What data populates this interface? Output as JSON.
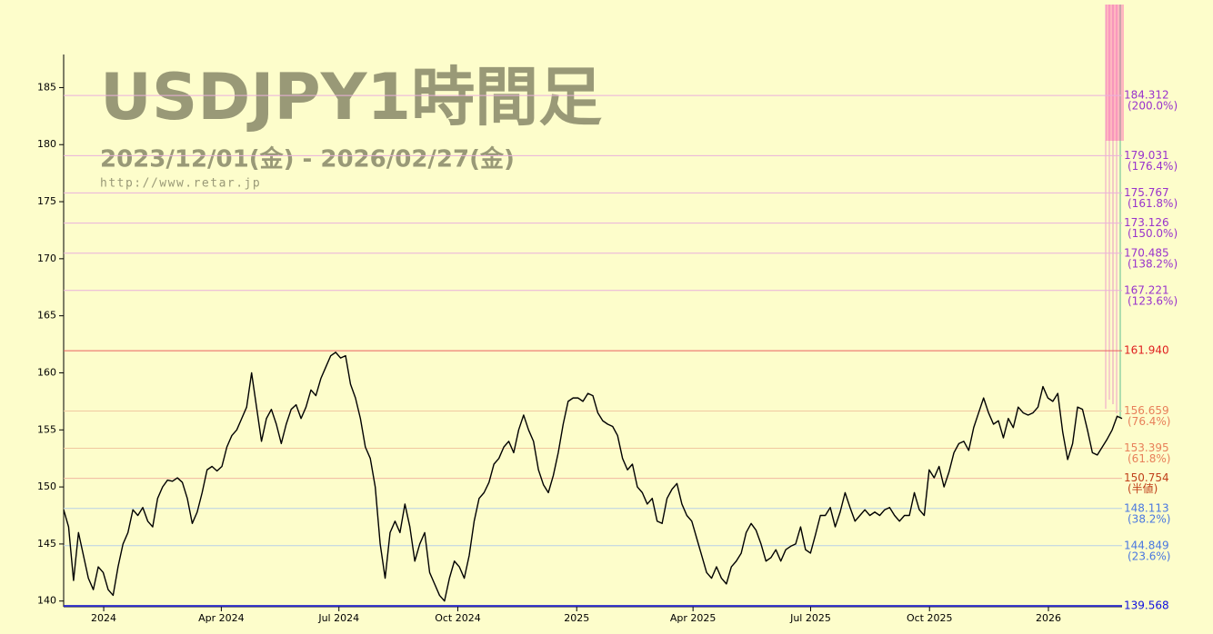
{
  "chart_data": {
    "type": "line",
    "title": "USDJPY1時間足",
    "subtitle": "2023/12/01(金) - 2026/02/27(金)",
    "source": "http://www.retar.jp",
    "color": "#000000",
    "xlim": [
      "2023-12-01",
      "2026-02-27"
    ],
    "xticks": [
      {
        "value": "2024-01-01",
        "label": "2024"
      },
      {
        "value": "2024-04-01",
        "label": "Apr 2024"
      },
      {
        "value": "2024-07-01",
        "label": "Jul 2024"
      },
      {
        "value": "2024-10-01",
        "label": "Oct 2024"
      },
      {
        "value": "2025-01-01",
        "label": "2025"
      },
      {
        "value": "2025-04-01",
        "label": "Apr 2025"
      },
      {
        "value": "2025-07-01",
        "label": "Jul 2025"
      },
      {
        "value": "2025-10-01",
        "label": "Oct 2025"
      },
      {
        "value": "2026-01-01",
        "label": "2026"
      }
    ],
    "ylim": [
      139.5,
      187.9
    ],
    "yticks": [
      140,
      145,
      150,
      155,
      160,
      165,
      170,
      175,
      180,
      185
    ],
    "values": [
      148.0,
      146.5,
      141.8,
      146,
      144,
      142,
      141,
      143,
      142.5,
      141,
      140.5,
      143,
      145,
      146,
      148,
      147.5,
      148.2,
      147,
      146.5,
      149,
      150,
      150.6,
      150.5,
      150.8,
      150.4,
      149,
      146.8,
      147.8,
      149.5,
      151.5,
      151.8,
      151.4,
      151.8,
      153.5,
      154.5,
      155,
      156,
      157,
      160,
      157,
      154,
      156,
      156.8,
      155.5,
      153.8,
      155.5,
      156.8,
      157.2,
      156,
      157,
      158.5,
      158,
      159.5,
      160.5,
      161.5,
      161.8,
      161.3,
      161.5,
      159,
      157.8,
      156,
      153.5,
      152.5,
      150,
      145,
      142,
      146,
      147,
      146,
      148.5,
      146.5,
      143.5,
      145,
      146,
      142.5,
      141.5,
      140.5,
      140,
      142,
      143.5,
      143,
      142,
      144,
      147,
      149,
      149.5,
      150.4,
      152,
      152.5,
      153.5,
      154,
      153,
      155,
      156.3,
      155,
      154,
      151.5,
      150.2,
      149.5,
      151,
      153,
      155.5,
      157.5,
      157.8,
      157.8,
      157.5,
      158.2,
      158,
      156.5,
      155.8,
      155.5,
      155.3,
      154.5,
      152.5,
      151.5,
      152,
      150,
      149.5,
      148.5,
      149,
      147,
      146.8,
      149,
      149.8,
      150.3,
      148.5,
      147.5,
      147,
      145.5,
      144,
      142.5,
      142,
      143,
      142,
      141.5,
      143,
      143.5,
      144.2,
      146,
      146.8,
      146.2,
      145,
      143.5,
      143.8,
      144.5,
      143.5,
      144.5,
      144.8,
      145,
      146.5,
      144.5,
      144.2,
      145.8,
      147.5,
      147.5,
      148.2,
      146.5,
      147.8,
      149.5,
      148.2,
      147,
      147.5,
      148,
      147.5,
      147.8,
      147.5,
      148,
      148.2,
      147.5,
      147,
      147.5,
      147.5,
      149.5,
      148,
      147.5,
      151.5,
      150.8,
      151.8,
      150,
      151.3,
      153,
      153.8,
      154,
      153.2,
      155.2,
      156.5,
      157.8,
      156.5,
      155.5,
      155.8,
      154.3,
      156,
      155.2,
      157,
      156.5,
      156.3,
      156.5,
      157,
      158.8,
      157.8,
      157.5,
      158.2,
      154.8,
      152.4,
      153.8,
      157,
      156.8,
      155,
      153,
      152.8,
      153.5,
      154.2,
      155,
      156.2,
      156
    ],
    "levels": [
      {
        "value": 184.312,
        "label": "184.312",
        "note": "(200.0%)",
        "color": "#9933cc",
        "line_color": "#eab0dc"
      },
      {
        "value": 179.031,
        "label": "179.031",
        "note": "(176.4%)",
        "color": "#9933cc",
        "line_color": "#eab0dc"
      },
      {
        "value": 175.767,
        "label": "175.767",
        "note": "(161.8%)",
        "color": "#9933cc",
        "line_color": "#eab0dc"
      },
      {
        "value": 173.126,
        "label": "173.126",
        "note": "(150.0%)",
        "color": "#9933cc",
        "line_color": "#eab0dc"
      },
      {
        "value": 170.485,
        "label": "170.485",
        "note": "(138.2%)",
        "color": "#9933cc",
        "line_color": "#eab0dc"
      },
      {
        "value": 167.221,
        "label": "167.221",
        "note": "(123.6%)",
        "color": "#9933cc",
        "line_color": "#eab0dc"
      },
      {
        "value": 161.94,
        "label": "161.940",
        "color": "#e02020",
        "line_color": "#e86060"
      },
      {
        "value": 156.659,
        "label": "156.659",
        "note": "(76.4%)",
        "color": "#e8805a",
        "line_color": "#f0c8a0"
      },
      {
        "value": 153.395,
        "label": "153.395",
        "note": "(61.8%)",
        "color": "#e8805a",
        "line_color": "#f0c8a0"
      },
      {
        "value": 150.754,
        "label": "150.754",
        "note": "(半値)",
        "color": "#c0401a",
        "line_color": "#f0b8a0"
      },
      {
        "value": 148.113,
        "label": "148.113",
        "note": "(38.2%)",
        "color": "#4a78e0",
        "line_color": "#b8d0e8"
      },
      {
        "value": 144.849,
        "label": "144.849",
        "note": "(23.6%)",
        "color": "#4a78e0",
        "line_color": "#b8d0e8"
      },
      {
        "value": 139.568,
        "label": "139.568",
        "color": "#1010e0",
        "line_color": "#2828c8"
      }
    ]
  }
}
